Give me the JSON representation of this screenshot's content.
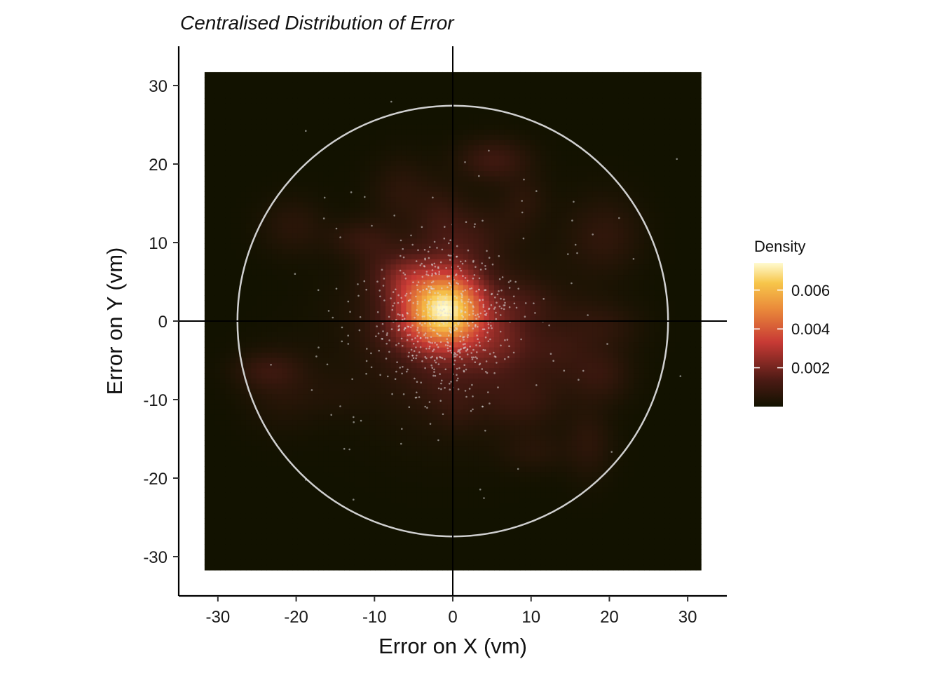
{
  "chart_data": {
    "type": "heatmap",
    "title": "Centralised Distribution of Error",
    "xlabel": "Error on X (vm)",
    "ylabel": "Error on Y (vm)",
    "xlim": [
      -35,
      35
    ],
    "ylim": [
      -35,
      35
    ],
    "heatmap_extent": {
      "x": [
        -31.7,
        31.7
      ],
      "y": [
        -31.7,
        31.7
      ]
    },
    "x_ticks": [
      -30,
      -20,
      -10,
      0,
      10,
      20,
      30
    ],
    "y_ticks": [
      -30,
      -20,
      -10,
      0,
      10,
      20,
      30
    ],
    "x_tick_labels": [
      "-30",
      "-20",
      "-10",
      "0",
      "10",
      "20",
      "30"
    ],
    "y_tick_labels": [
      "-30",
      "-20",
      "-10",
      "0",
      "10",
      "20",
      "30"
    ],
    "reference_lines": {
      "x": 0,
      "y": 0
    },
    "circle": {
      "center": [
        0,
        0
      ],
      "radius": 27.5,
      "color": "#d0d0d0"
    },
    "density_peak": {
      "x": -1,
      "y": 1.5,
      "value": 0.0072
    },
    "legend": {
      "title": "Density",
      "placement": "right",
      "ticks": [
        0.006,
        0.004,
        0.002
      ],
      "tick_labels": [
        "0.006",
        "0.004",
        "0.002"
      ],
      "range": [
        0,
        0.0074
      ]
    },
    "colors": {
      "low": "#121200",
      "mid_dark": "#4a1a14",
      "mid": "#c83a35",
      "mid_high": "#ea8a3a",
      "high": "#f7c64a",
      "max": "#fffbd0",
      "points": "#dcdcdc"
    },
    "grid": false
  }
}
